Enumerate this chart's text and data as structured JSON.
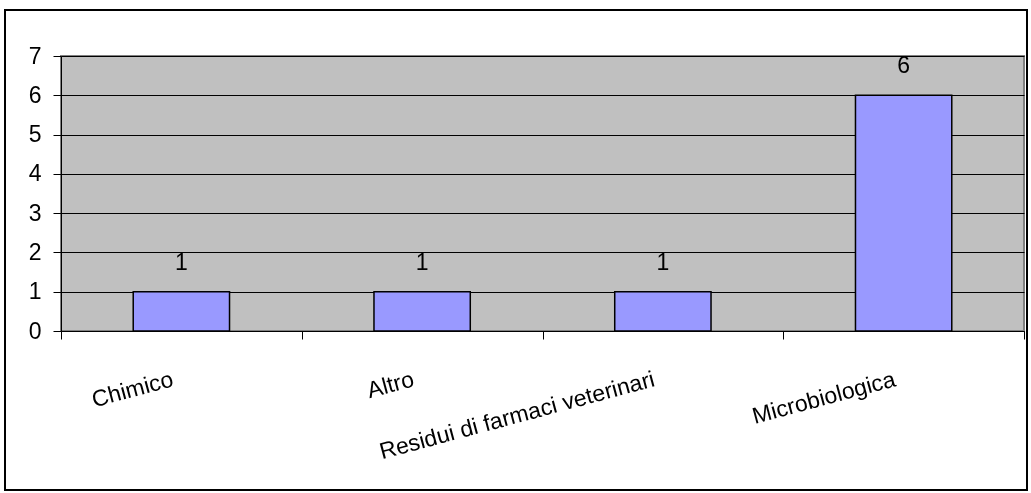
{
  "chart_data": {
    "type": "bar",
    "categories": [
      "Chimico",
      "Altro",
      "Residui di farmaci veterinari",
      "Microbiologica"
    ],
    "values": [
      1,
      1,
      1,
      6
    ],
    "color": "#9999ff",
    "ylim": [
      0,
      7
    ],
    "yticks": [
      0,
      1,
      2,
      3,
      4,
      5,
      6,
      7
    ],
    "grid": "y",
    "data_labels": true
  }
}
